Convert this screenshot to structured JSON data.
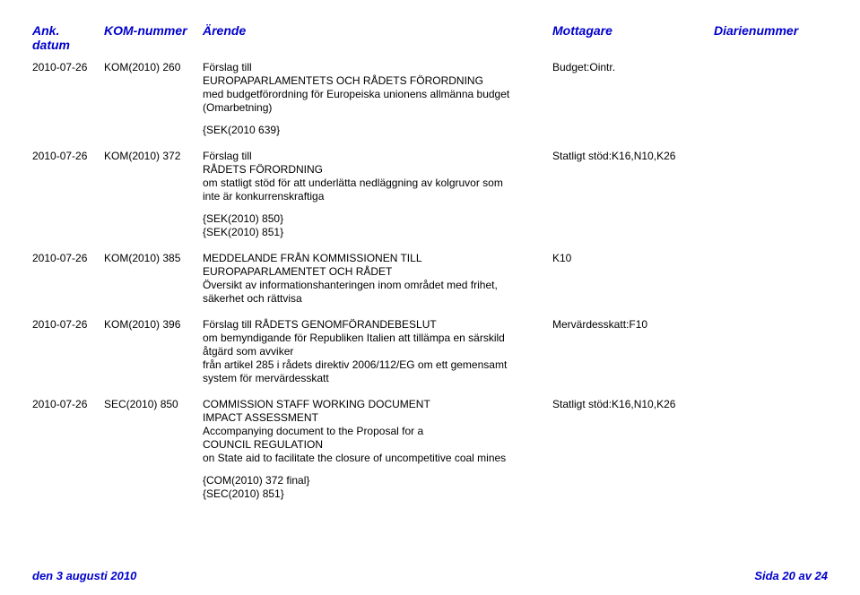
{
  "headers": {
    "date": "Ank. datum",
    "kom": "KOM-nummer",
    "arende": "Ärende",
    "mottagare": "Mottagare",
    "diarie": "Diarienummer"
  },
  "rows": [
    {
      "date": "2010-07-26",
      "kom": "KOM(2010) 260",
      "arende": "Förslag till\nEUROPAPARLAMENTETS OCH RÅDETS FÖRORDNING\nmed budgetförordning för Europeiska unionens allmänna budget\n(Omarbetning)",
      "supplement": "{SEK(2010 639}",
      "mottagare": "Budget:Ointr.",
      "diarie": ""
    },
    {
      "date": "2010-07-26",
      "kom": "KOM(2010) 372",
      "arende": "Förslag till\nRÅDETS FÖRORDNING\nom statligt stöd för att underlätta nedläggning av kolgruvor som\ninte är konkurrenskraftiga",
      "supplement": "{SEK(2010) 850}\n{SEK(2010) 851}",
      "mottagare": "Statligt stöd:K16,N10,K26",
      "diarie": ""
    },
    {
      "date": "2010-07-26",
      "kom": "KOM(2010) 385",
      "arende": "MEDDELANDE FRÅN KOMMISSIONEN TILL\nEUROPAPARLAMENTET OCH RÅDET\nÖversikt av informationshanteringen inom området med frihet,\nsäkerhet och rättvisa",
      "supplement": "",
      "mottagare": "K10",
      "diarie": ""
    },
    {
      "date": "2010-07-26",
      "kom": "KOM(2010) 396",
      "arende": "Förslag till RÅDETS GENOMFÖRANDEBESLUT\nom bemyndigande för Republiken Italien att tillämpa en särskild\nåtgärd som avviker\nfrån artikel 285 i rådets direktiv 2006/112/EG om ett gemensamt\nsystem för mervärdesskatt",
      "supplement": "",
      "mottagare": "Mervärdesskatt:F10",
      "diarie": ""
    },
    {
      "date": "2010-07-26",
      "kom": "SEC(2010) 850",
      "arende": "COMMISSION STAFF WORKING DOCUMENT\nIMPACT ASSESSMENT\nAccompanying document to the Proposal for a\nCOUNCIL REGULATION\non State aid to facilitate the closure of uncompetitive coal mines",
      "supplement": "{COM(2010) 372 final}\n{SEC(2010) 851}",
      "mottagare": "Statligt stöd:K16,N10,K26",
      "diarie": ""
    }
  ],
  "footer": {
    "left": "den 3 augusti 2010",
    "right": "Sida 20 av 24"
  }
}
